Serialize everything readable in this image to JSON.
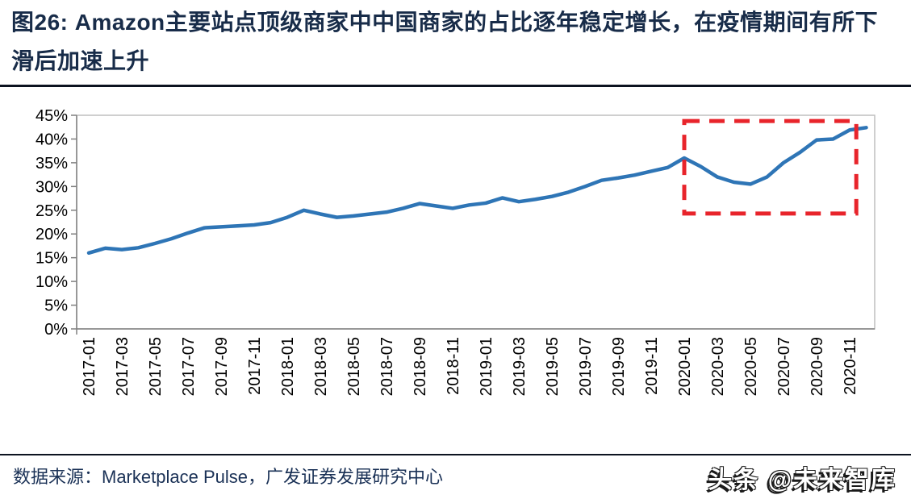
{
  "header": {
    "title": "图26: Amazon主要站点顶级商家中中国商家的占比逐年稳定增长，在疫情期间有所下滑后加速上升"
  },
  "chart_data": {
    "type": "line",
    "title": "",
    "x": [
      "2017-01",
      "2017-02",
      "2017-03",
      "2017-04",
      "2017-05",
      "2017-06",
      "2017-07",
      "2017-08",
      "2017-09",
      "2017-10",
      "2017-11",
      "2017-12",
      "2018-01",
      "2018-02",
      "2018-03",
      "2018-04",
      "2018-05",
      "2018-06",
      "2018-07",
      "2018-08",
      "2018-09",
      "2018-10",
      "2018-11",
      "2018-12",
      "2019-01",
      "2019-02",
      "2019-03",
      "2019-04",
      "2019-05",
      "2019-06",
      "2019-07",
      "2019-08",
      "2019-09",
      "2019-10",
      "2019-11",
      "2019-12",
      "2020-01",
      "2020-02",
      "2020-03",
      "2020-04",
      "2020-05",
      "2020-06",
      "2020-07",
      "2020-08",
      "2020-09",
      "2020-10",
      "2020-11",
      "2020-12"
    ],
    "values": [
      16.0,
      17.0,
      16.7,
      17.1,
      18.0,
      19.0,
      20.2,
      21.3,
      21.5,
      21.7,
      21.9,
      22.4,
      23.5,
      25.0,
      24.2,
      23.5,
      23.8,
      24.2,
      24.6,
      25.4,
      26.4,
      25.9,
      25.4,
      26.1,
      26.5,
      27.6,
      26.8,
      27.3,
      27.9,
      28.8,
      30.0,
      31.3,
      31.8,
      32.4,
      33.2,
      34.0,
      36.0,
      34.2,
      32.0,
      30.9,
      30.5,
      32.0,
      35.0,
      37.2,
      39.8,
      40.0,
      41.9,
      42.4
    ],
    "xtick_every": 2,
    "xtick_labels": [
      "2017-01",
      "2017-03",
      "2017-05",
      "2017-07",
      "2017-09",
      "2017-11",
      "2018-01",
      "2018-03",
      "2018-05",
      "2018-07",
      "2018-09",
      "2018-11",
      "2019-01",
      "2019-03",
      "2019-05",
      "2019-07",
      "2019-09",
      "2019-11",
      "2020-01",
      "2020-03",
      "2020-05",
      "2020-07",
      "2020-09",
      "2020-11"
    ],
    "ylim": [
      0,
      45
    ],
    "ytick_step": 5,
    "ytick_suffix": "%",
    "ytick_labels": [
      "0%",
      "5%",
      "10%",
      "15%",
      "20%",
      "25%",
      "30%",
      "35%",
      "40%",
      "45%"
    ],
    "grid": false,
    "legend": false,
    "line_color": "#2E75B6",
    "axis_color": "#808080",
    "border_color": "#BFBFBF",
    "tick_label_color": "#000000",
    "annotation_box": {
      "meaning": "疫情期间下滑后加速上升区间",
      "color": "#E8242B",
      "style": "dashed",
      "x_from_index": 36,
      "x_to_index": 46.4,
      "y_from": 24.3,
      "y_to": 43.8
    }
  },
  "footer": {
    "source": "数据来源：Marketplace Pulse，广发证券发展研究中心",
    "watermark": "头条 @未来智库"
  },
  "palette": {
    "title_color": "#182C49",
    "rule_color": "#0C1320",
    "source_color": "#1A3156",
    "watermark_face": "#FFFFFF",
    "watermark_outline": "#1A1A1A"
  }
}
